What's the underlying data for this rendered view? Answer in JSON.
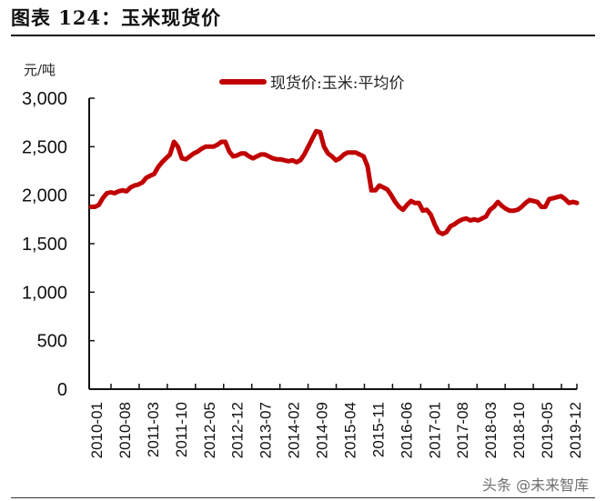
{
  "header": {
    "title": "图表 124：玉米现货价"
  },
  "unit_label": "元/吨",
  "watermark": "头条 @未来智库",
  "colors": {
    "series": "#c00000",
    "axis": "#111111"
  },
  "chart_data": {
    "type": "line",
    "title": "图表 124：玉米现货价",
    "xlabel": "",
    "ylabel": "元/吨",
    "ylim": [
      0,
      3000
    ],
    "yticks": [
      0,
      500,
      1000,
      1500,
      2000,
      2500,
      3000
    ],
    "ytick_labels": [
      "0",
      "500",
      "1,000",
      "1,500",
      "2,000",
      "2,500",
      "3,000"
    ],
    "xtick_labels": [
      "2010-01",
      "2010-08",
      "2011-03",
      "2011-10",
      "2012-05",
      "2012-12",
      "2013-07",
      "2014-02",
      "2014-09",
      "2015-04",
      "2015-11",
      "2016-06",
      "2017-01",
      "2017-08",
      "2018-03",
      "2018-10",
      "2019-05",
      "2019-12"
    ],
    "grid": false,
    "legend": {
      "position": "top",
      "entries": [
        "现货价:玉米:平均价"
      ]
    },
    "series": [
      {
        "name": "现货价:玉米:平均价",
        "x_start": "2010-01",
        "frequency": "monthly",
        "values": [
          1880,
          1880,
          1900,
          1970,
          2020,
          2030,
          2020,
          2040,
          2050,
          2040,
          2080,
          2100,
          2110,
          2130,
          2180,
          2200,
          2220,
          2290,
          2340,
          2380,
          2420,
          2550,
          2500,
          2380,
          2370,
          2400,
          2430,
          2450,
          2480,
          2500,
          2500,
          2500,
          2520,
          2550,
          2550,
          2450,
          2400,
          2410,
          2430,
          2430,
          2400,
          2380,
          2400,
          2420,
          2420,
          2400,
          2380,
          2370,
          2370,
          2360,
          2350,
          2360,
          2340,
          2360,
          2420,
          2500,
          2580,
          2660,
          2650,
          2500,
          2430,
          2400,
          2360,
          2380,
          2420,
          2440,
          2440,
          2440,
          2420,
          2400,
          2300,
          2050,
          2050,
          2100,
          2080,
          2060,
          2000,
          1930,
          1880,
          1850,
          1900,
          1940,
          1920,
          1920,
          1840,
          1850,
          1800,
          1700,
          1620,
          1600,
          1620,
          1680,
          1700,
          1730,
          1750,
          1760,
          1740,
          1750,
          1740,
          1760,
          1780,
          1850,
          1880,
          1930,
          1890,
          1860,
          1840,
          1840,
          1850,
          1880,
          1920,
          1950,
          1940,
          1930,
          1880,
          1880,
          1960,
          1970,
          1980,
          1990,
          1960,
          1920,
          1930,
          1920
        ]
      }
    ]
  }
}
